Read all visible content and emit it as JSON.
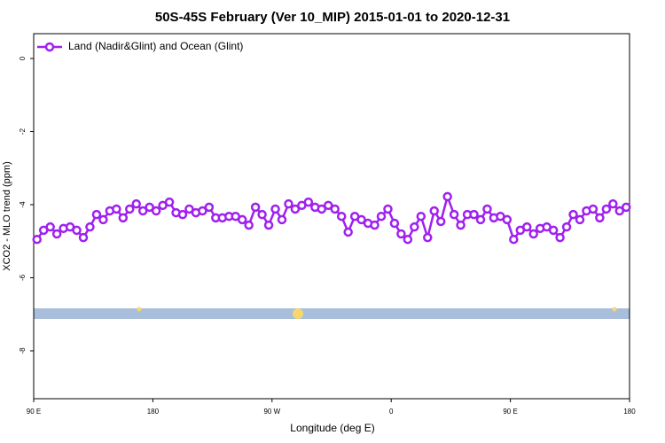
{
  "chart_data": {
    "type": "line",
    "title": "50S-45S February (Ver 10_MIP)   2015-01-01 to 2020-12-31",
    "x_label": "Longitude (deg E)",
    "y_label": "XCO2 - MLO trend (ppm)",
    "legend_position": "top-left",
    "xlim": [
      90,
      540
    ],
    "xticks": [
      {
        "value": 90,
        "label": "90 E"
      },
      180,
      {
        "value": 270,
        "label": "90 W"
      },
      {
        "value": 360,
        "label": "0"
      },
      {
        "value": 450,
        "label": "90 E"
      },
      {
        "value": 540,
        "label": "180"
      }
    ],
    "ylim": [
      0.68,
      -9.31
    ],
    "yticks": [
      0,
      -2,
      -4,
      -6,
      -8
    ],
    "x": [
      92.5,
      97.5,
      102.5,
      107.5,
      112.5,
      117.5,
      122.5,
      127.5,
      132.5,
      137.5,
      142.5,
      147.5,
      152.5,
      157.5,
      162.5,
      167.5,
      172.5,
      177.5,
      182.5,
      187.5,
      192.5,
      197.5,
      202.5,
      207.5,
      212.5,
      217.5,
      222.5,
      227.5,
      232.5,
      237.5,
      242.5,
      247.5,
      252.5,
      257.5,
      262.5,
      267.5,
      272.5,
      277.5,
      282.5,
      287.5,
      292.5,
      297.5,
      302.5,
      307.5,
      312.5,
      317.5,
      322.5,
      327.5,
      332.5,
      337.5,
      342.5,
      347.5,
      352.5,
      357.5,
      362.5,
      367.5,
      372.5,
      377.5,
      382.5,
      387.5,
      392.5,
      397.5,
      402.5,
      407.5,
      412.5,
      417.5,
      422.5,
      427.5,
      432.5,
      437.5,
      442.5,
      447.5,
      452.5,
      457.5,
      462.5,
      467.5,
      472.5,
      477.5,
      482.5,
      487.5,
      492.5,
      497.5,
      502.5,
      507.5,
      512.5,
      517.5,
      522.5,
      527.5,
      532.5,
      537.5
    ],
    "series": [
      {
        "name": "Land (Nadir&Glint) and Ocean (Glint)",
        "color": "#a020f0",
        "values": [
          -4.95,
          -4.7,
          -4.61,
          -4.8,
          -4.65,
          -4.61,
          -4.7,
          -4.9,
          -4.61,
          -4.27,
          -4.41,
          -4.17,
          -4.12,
          -4.36,
          -4.12,
          -3.98,
          -4.17,
          -4.07,
          -4.17,
          -4.02,
          -3.93,
          -4.22,
          -4.27,
          -4.12,
          -4.22,
          -4.17,
          -4.07,
          -4.36,
          -4.36,
          -4.32,
          -4.32,
          -4.41,
          -4.56,
          -4.07,
          -4.27,
          -4.56,
          -4.12,
          -4.41,
          -3.98,
          -4.12,
          -4.02,
          -3.93,
          -4.07,
          -4.12,
          -4.02,
          -4.12,
          -4.32,
          -4.75,
          -4.32,
          -4.41,
          -4.51,
          -4.56,
          -4.32,
          -4.12,
          -4.51,
          -4.8,
          -4.95,
          -4.61,
          -4.32,
          -4.9,
          -4.17,
          -4.46,
          -3.78,
          -4.27,
          -4.56,
          -4.27,
          -4.27,
          -4.41,
          -4.12,
          -4.36,
          -4.32,
          -4.41,
          -4.95,
          -4.7,
          -4.61,
          -4.8,
          -4.65,
          -4.61,
          -4.7,
          -4.9,
          -4.61,
          -4.27,
          -4.41,
          -4.17,
          -4.12,
          -4.36,
          -4.12,
          -3.98,
          -4.17,
          -4.07
        ]
      }
    ]
  }
}
